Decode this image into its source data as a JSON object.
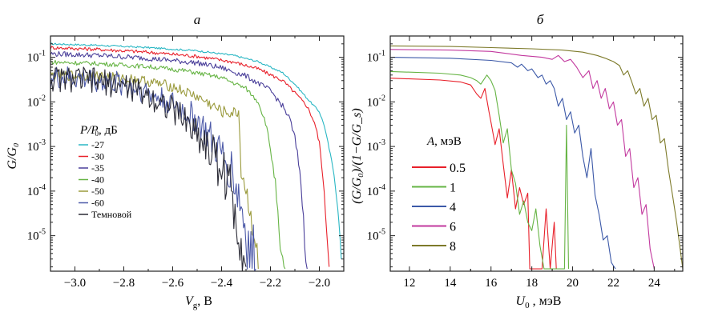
{
  "chart_data": [
    {
      "type": "line",
      "panel": "a",
      "title": "a",
      "xlabel_main": "V",
      "xlabel_sub": "g",
      "xlabel_unit": ", В",
      "ylabel": "G/G₀",
      "yscale": "log",
      "xlim": [
        -3.1,
        -1.9
      ],
      "ylim": [
        1.6e-06,
        0.3
      ],
      "xticks": [
        -3.0,
        -2.8,
        -2.6,
        -2.4,
        -2.2,
        -2.0
      ],
      "xtick_labels": [
        "−3.0",
        "−2.8",
        "−2.6",
        "−2.4",
        "−2.2",
        "−2.0"
      ],
      "yticks": [
        0.1,
        0.01,
        0.001,
        0.0001,
        1e-05
      ],
      "ytick_labels": [
        [
          "10",
          "-1"
        ],
        [
          "10",
          "-2"
        ],
        [
          "10",
          "-3"
        ],
        [
          "10",
          "-4"
        ],
        [
          "10",
          "-5"
        ]
      ],
      "legend": {
        "title_main": "P/P",
        "title_sub": "0",
        "title_unit": ", дБ",
        "placement": "center-left"
      },
      "series": [
        {
          "name": "-27",
          "color": "#2ab7c4",
          "noise": 0.02,
          "points": [
            [
              -3.1,
              0.2
            ],
            [
              -2.9,
              0.185
            ],
            [
              -2.7,
              0.165
            ],
            [
              -2.5,
              0.14
            ],
            [
              -2.35,
              0.11
            ],
            [
              -2.25,
              0.08
            ],
            [
              -2.15,
              0.045
            ],
            [
              -2.1,
              0.025
            ],
            [
              -2.05,
              0.012
            ],
            [
              -2.0,
              0.006
            ],
            [
              -1.98,
              0.003
            ],
            [
              -1.96,
              0.0009
            ],
            [
              -1.94,
              0.00025
            ],
            [
              -1.93,
              8e-05
            ],
            [
              -1.92,
              2e-05
            ],
            [
              -1.91,
              3e-06
            ]
          ]
        },
        {
          "name": "-30",
          "color": "#e8202a",
          "noise": 0.04,
          "points": [
            [
              -3.1,
              0.165
            ],
            [
              -2.9,
              0.15
            ],
            [
              -2.7,
              0.13
            ],
            [
              -2.5,
              0.105
            ],
            [
              -2.35,
              0.078
            ],
            [
              -2.25,
              0.055
            ],
            [
              -2.15,
              0.03
            ],
            [
              -2.1,
              0.016
            ],
            [
              -2.05,
              0.008
            ],
            [
              -2.02,
              0.0035
            ],
            [
              -2.0,
              0.0012
            ],
            [
              -1.99,
              0.0004
            ],
            [
              -1.98,
              8e-05
            ],
            [
              -1.97,
              1.5e-05
            ],
            [
              -1.96,
              2e-06
            ]
          ]
        },
        {
          "name": "-35",
          "color": "#4a3f9a",
          "noise": 0.06,
          "points": [
            [
              -3.1,
              0.12
            ],
            [
              -2.9,
              0.11
            ],
            [
              -2.7,
              0.095
            ],
            [
              -2.5,
              0.075
            ],
            [
              -2.4,
              0.058
            ],
            [
              -2.3,
              0.038
            ],
            [
              -2.2,
              0.018
            ],
            [
              -2.15,
              0.008
            ],
            [
              -2.12,
              0.004
            ],
            [
              -2.1,
              0.0015
            ],
            [
              -2.08,
              0.0003
            ],
            [
              -2.07,
              6e-05
            ],
            [
              -2.06,
              8e-06
            ],
            [
              -2.05,
              1.8e-06
            ]
          ]
        },
        {
          "name": "-40",
          "color": "#66b444",
          "noise": 0.05,
          "points": [
            [
              -3.1,
              0.078
            ],
            [
              -2.9,
              0.072
            ],
            [
              -2.7,
              0.062
            ],
            [
              -2.55,
              0.05
            ],
            [
              -2.4,
              0.035
            ],
            [
              -2.3,
              0.02
            ],
            [
              -2.25,
              0.01
            ],
            [
              -2.22,
              0.0035
            ],
            [
              -2.2,
              0.0009
            ],
            [
              -2.18,
              0.00015
            ],
            [
              -2.17,
              3e-05
            ],
            [
              -2.16,
              4e-06
            ],
            [
              -2.14,
              1.8e-06
            ]
          ]
        },
        {
          "name": "-50",
          "color": "#9a9a3c",
          "noise": 0.12,
          "points": [
            [
              -3.1,
              0.04
            ],
            [
              -2.9,
              0.038
            ],
            [
              -2.75,
              0.032
            ],
            [
              -2.6,
              0.022
            ],
            [
              -2.5,
              0.013
            ],
            [
              -2.45,
              0.009
            ],
            [
              -2.4,
              0.006
            ],
            [
              -2.35,
              0.0055
            ],
            [
              -2.33,
              0.006
            ],
            [
              -2.32,
              0.0003
            ],
            [
              -2.3,
              0.0001
            ],
            [
              -2.28,
              3e-05
            ],
            [
              -2.26,
              6e-06
            ],
            [
              -2.25,
              1.8e-06
            ]
          ]
        },
        {
          "name": "-60",
          "color": "#4d5aa8",
          "noise": 0.28,
          "points": [
            [
              -3.1,
              0.034
            ],
            [
              -2.95,
              0.032
            ],
            [
              -2.8,
              0.025
            ],
            [
              -2.7,
              0.016
            ],
            [
              -2.6,
              0.009
            ],
            [
              -2.5,
              0.004
            ],
            [
              -2.45,
              0.0015
            ],
            [
              -2.4,
              0.0006
            ],
            [
              -2.36,
              0.0003
            ],
            [
              -2.33,
              8e-05
            ],
            [
              -2.3,
              1.2e-05
            ],
            [
              -2.28,
              3e-06
            ],
            [
              -2.26,
              1.8e-06
            ]
          ]
        },
        {
          "name": "Темновой",
          "color": "#2a2a35",
          "noise": 0.3,
          "points": [
            [
              -3.1,
              0.033
            ],
            [
              -2.95,
              0.031
            ],
            [
              -2.8,
              0.023
            ],
            [
              -2.7,
              0.014
            ],
            [
              -2.62,
              0.008
            ],
            [
              -2.55,
              0.004
            ],
            [
              -2.48,
              0.0015
            ],
            [
              -2.42,
              0.0005
            ],
            [
              -2.38,
              0.0002
            ],
            [
              -2.35,
              5e-05
            ],
            [
              -2.32,
              1e-05
            ],
            [
              -2.3,
              2e-06
            ]
          ]
        }
      ]
    },
    {
      "type": "line",
      "panel": "b",
      "title": "б",
      "xlabel_main": "U",
      "xlabel_sub": "0",
      "xlabel_unit": " , мэВ",
      "ylabel": "(G/G₀)/(1−G/G_s)",
      "yscale": "log",
      "xlim": [
        11.06,
        25.4
      ],
      "ylim": [
        1.6e-06,
        0.3
      ],
      "xticks": [
        12,
        14,
        16,
        18,
        20,
        22,
        24
      ],
      "xtick_labels": [
        "12",
        "14",
        "16",
        "18",
        "20",
        "22",
        "24"
      ],
      "yticks": [
        0.1,
        0.01,
        0.001,
        0.0001,
        1e-05
      ],
      "ytick_labels": [
        [
          "10",
          "-1"
        ],
        [
          "10",
          "-2"
        ],
        [
          "10",
          "-3"
        ],
        [
          "10",
          "-4"
        ],
        [
          "10",
          "-5"
        ]
      ],
      "legend": {
        "title_main": "A",
        "title_unit": ", мэВ",
        "placement": "center-left"
      },
      "series": [
        {
          "name": "0.5",
          "color": "#e8202a",
          "points": [
            [
              11.06,
              0.034
            ],
            [
              13.5,
              0.031
            ],
            [
              14.5,
              0.028
            ],
            [
              15,
              0.024
            ],
            [
              15.3,
              0.015
            ],
            [
              15.5,
              0.012
            ],
            [
              15.7,
              0.02
            ],
            [
              15.9,
              0.006
            ],
            [
              16.0,
              0.0035
            ],
            [
              16.2,
              0.0011
            ],
            [
              16.4,
              0.0025
            ],
            [
              16.6,
              0.0004
            ],
            [
              16.8,
              7e-05
            ],
            [
              17.0,
              0.0003
            ],
            [
              17.2,
              4e-05
            ],
            [
              17.4,
              0.00012
            ],
            [
              17.6,
              5e-05
            ],
            [
              17.8,
              9e-05
            ],
            [
              17.9,
              1.8e-06
            ],
            [
              18.5,
              1.8e-06
            ],
            [
              18.7,
              4e-05
            ],
            [
              18.9,
              1.8e-06
            ],
            [
              19.1,
              2e-05
            ],
            [
              19.2,
              1.8e-06
            ]
          ]
        },
        {
          "name": "1",
          "color": "#66b444",
          "points": [
            [
              11.06,
              0.048
            ],
            [
              13.5,
              0.044
            ],
            [
              14.5,
              0.04
            ],
            [
              15,
              0.035
            ],
            [
              15.3,
              0.03
            ],
            [
              15.5,
              0.025
            ],
            [
              15.8,
              0.04
            ],
            [
              16.0,
              0.03
            ],
            [
              16.2,
              0.018
            ],
            [
              16.4,
              0.005
            ],
            [
              16.6,
              0.0012
            ],
            [
              16.8,
              0.0025
            ],
            [
              17.0,
              0.0003
            ],
            [
              17.2,
              0.00015
            ],
            [
              17.4,
              3e-05
            ],
            [
              17.6,
              6e-05
            ],
            [
              17.8,
              2e-05
            ],
            [
              18.0,
              1.3e-05
            ],
            [
              18.2,
              4e-05
            ],
            [
              18.4,
              6e-06
            ],
            [
              18.6,
              1.8e-06
            ],
            [
              19.6,
              1.8e-06
            ],
            [
              19.7,
              0.003
            ],
            [
              19.8,
              1.8e-06
            ]
          ]
        },
        {
          "name": "4",
          "color": "#3c59a8",
          "points": [
            [
              11.06,
              0.1
            ],
            [
              14,
              0.095
            ],
            [
              16,
              0.085
            ],
            [
              17,
              0.075
            ],
            [
              17.3,
              0.06
            ],
            [
              17.5,
              0.07
            ],
            [
              17.8,
              0.05
            ],
            [
              18.0,
              0.055
            ],
            [
              18.3,
              0.035
            ],
            [
              18.5,
              0.04
            ],
            [
              18.7,
              0.025
            ],
            [
              18.9,
              0.03
            ],
            [
              19.1,
              0.02
            ],
            [
              19.3,
              0.008
            ],
            [
              19.5,
              0.012
            ],
            [
              19.7,
              0.004
            ],
            [
              19.9,
              0.006
            ],
            [
              20.1,
              0.002
            ],
            [
              20.3,
              0.003
            ],
            [
              20.5,
              0.0006
            ],
            [
              20.7,
              0.0002
            ],
            [
              20.9,
              0.0009
            ],
            [
              21.1,
              8e-05
            ],
            [
              21.3,
              3e-05
            ],
            [
              21.5,
              8e-06
            ],
            [
              21.7,
              1e-05
            ],
            [
              21.9,
              2.5e-06
            ],
            [
              22.1,
              1.8e-06
            ]
          ]
        },
        {
          "name": "6",
          "color": "#c2389e",
          "points": [
            [
              11.06,
              0.15
            ],
            [
              14,
              0.145
            ],
            [
              16,
              0.135
            ],
            [
              17.5,
              0.11
            ],
            [
              18.5,
              0.1
            ],
            [
              19,
              0.09
            ],
            [
              19.3,
              0.11
            ],
            [
              19.6,
              0.08
            ],
            [
              19.9,
              0.09
            ],
            [
              20.2,
              0.06
            ],
            [
              20.5,
              0.035
            ],
            [
              20.8,
              0.05
            ],
            [
              21.0,
              0.02
            ],
            [
              21.2,
              0.03
            ],
            [
              21.4,
              0.012
            ],
            [
              21.6,
              0.02
            ],
            [
              21.8,
              0.007
            ],
            [
              22.0,
              0.01
            ],
            [
              22.2,
              0.003
            ],
            [
              22.4,
              0.004
            ],
            [
              22.6,
              0.0006
            ],
            [
              22.8,
              0.0009
            ],
            [
              23.0,
              0.00012
            ],
            [
              23.2,
              0.0002
            ],
            [
              23.4,
              3e-05
            ],
            [
              23.6,
              5e-05
            ],
            [
              23.8,
              5e-06
            ],
            [
              24.0,
              1.8e-06
            ]
          ]
        },
        {
          "name": "8",
          "color": "#7d7a2a",
          "points": [
            [
              11.06,
              0.18
            ],
            [
              14,
              0.175
            ],
            [
              16,
              0.165
            ],
            [
              18,
              0.155
            ],
            [
              19.5,
              0.145
            ],
            [
              20.5,
              0.13
            ],
            [
              21.2,
              0.11
            ],
            [
              21.6,
              0.095
            ],
            [
              22.0,
              0.08
            ],
            [
              22.3,
              0.065
            ],
            [
              22.5,
              0.04
            ],
            [
              22.7,
              0.05
            ],
            [
              22.9,
              0.028
            ],
            [
              23.1,
              0.015
            ],
            [
              23.3,
              0.02
            ],
            [
              23.5,
              0.008
            ],
            [
              23.7,
              0.012
            ],
            [
              23.9,
              0.004
            ],
            [
              24.1,
              0.005
            ],
            [
              24.3,
              0.0012
            ],
            [
              24.5,
              0.0015
            ],
            [
              24.7,
              0.0003
            ],
            [
              24.9,
              8e-05
            ],
            [
              25.1,
              2e-05
            ],
            [
              25.3,
              4e-06
            ],
            [
              25.4,
              1.8e-06
            ]
          ]
        }
      ]
    }
  ]
}
